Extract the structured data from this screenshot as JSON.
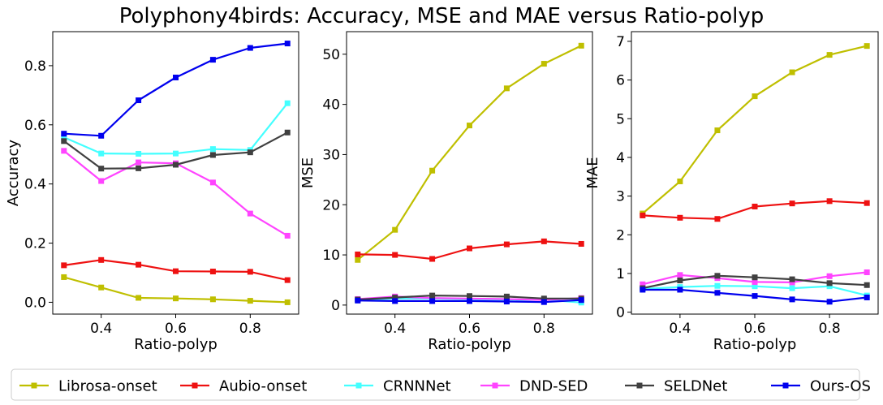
{
  "figure_title": "Polyphony4birds: Accuracy, MSE and MAE versus Ratio-polyp",
  "legend": [
    {
      "name": "Librosa-onset",
      "color": "#bfbf00"
    },
    {
      "name": "Aubio-onset",
      "color": "#ee1111"
    },
    {
      "name": "CRNNNet",
      "color": "#44ffff"
    },
    {
      "name": "DND-SED",
      "color": "#ff44ff"
    },
    {
      "name": "SELDNet",
      "color": "#404040"
    },
    {
      "name": "Ours-OS",
      "color": "#0000ee"
    }
  ],
  "chart_data": [
    {
      "type": "line",
      "xlabel": "Ratio-polyp",
      "ylabel": "Accuracy",
      "xlim": [
        0.27,
        0.93
      ],
      "ylim": [
        -0.04,
        0.915
      ],
      "xticks": [
        0.4,
        0.6,
        0.8
      ],
      "xtick_labels": [
        "0.4",
        "0.6",
        "0.8"
      ],
      "yticks": [
        0.0,
        0.2,
        0.4,
        0.6,
        0.8
      ],
      "ytick_labels": [
        "0.0",
        "0.2",
        "0.4",
        "0.6",
        "0.8"
      ],
      "grid": false,
      "x": [
        0.3,
        0.4,
        0.5,
        0.6,
        0.7,
        0.8,
        0.9
      ],
      "series": [
        {
          "name": "Librosa-onset",
          "color": "#bfbf00",
          "values": [
            0.085,
            0.05,
            0.015,
            0.013,
            0.01,
            0.005,
            0.0
          ]
        },
        {
          "name": "Aubio-onset",
          "color": "#ee1111",
          "values": [
            0.125,
            0.143,
            0.127,
            0.105,
            0.104,
            0.103,
            0.075
          ]
        },
        {
          "name": "CRNNNet",
          "color": "#44ffff",
          "values": [
            0.558,
            0.503,
            0.502,
            0.503,
            0.518,
            0.515,
            0.673
          ]
        },
        {
          "name": "DND-SED",
          "color": "#ff44ff",
          "values": [
            0.512,
            0.41,
            0.473,
            0.47,
            0.405,
            0.3,
            0.225
          ]
        },
        {
          "name": "SELDNet",
          "color": "#404040",
          "values": [
            0.545,
            0.452,
            0.453,
            0.465,
            0.498,
            0.507,
            0.574
          ]
        },
        {
          "name": "Ours-OS",
          "color": "#0000ee",
          "values": [
            0.57,
            0.563,
            0.683,
            0.76,
            0.82,
            0.86,
            0.875
          ]
        }
      ]
    },
    {
      "type": "line",
      "xlabel": "Ratio-polyp",
      "ylabel": "MSE",
      "xlim": [
        0.27,
        0.93
      ],
      "ylim": [
        -1.8,
        54.5
      ],
      "xticks": [
        0.4,
        0.6,
        0.8
      ],
      "xtick_labels": [
        "0.4",
        "0.6",
        "0.8"
      ],
      "yticks": [
        0,
        10,
        20,
        30,
        40,
        50
      ],
      "ytick_labels": [
        "0",
        "10",
        "20",
        "30",
        "40",
        "50"
      ],
      "grid": false,
      "x": [
        0.3,
        0.4,
        0.5,
        0.6,
        0.7,
        0.8,
        0.9
      ],
      "series": [
        {
          "name": "Librosa-onset",
          "color": "#bfbf00",
          "values": [
            9.0,
            15.0,
            26.8,
            35.8,
            43.2,
            48.1,
            51.7
          ]
        },
        {
          "name": "Aubio-onset",
          "color": "#ee1111",
          "values": [
            10.1,
            10.0,
            9.2,
            11.3,
            12.1,
            12.7,
            12.2
          ]
        },
        {
          "name": "CRNNNet",
          "color": "#44ffff",
          "values": [
            1.0,
            1.3,
            1.3,
            1.2,
            0.9,
            1.1,
            0.5
          ]
        },
        {
          "name": "DND-SED",
          "color": "#ff44ff",
          "values": [
            1.2,
            1.7,
            1.4,
            1.3,
            1.2,
            1.0,
            1.4
          ]
        },
        {
          "name": "SELDNet",
          "color": "#404040",
          "values": [
            1.1,
            1.5,
            1.9,
            1.8,
            1.7,
            1.3,
            1.3
          ]
        },
        {
          "name": "Ours-OS",
          "color": "#0000ee",
          "values": [
            0.9,
            0.8,
            0.8,
            0.8,
            0.7,
            0.6,
            1.0
          ]
        }
      ]
    },
    {
      "type": "line",
      "xlabel": "Ratio-polyp",
      "ylabel": "MAE",
      "xlim": [
        0.27,
        0.93
      ],
      "ylim": [
        -0.05,
        7.25
      ],
      "xticks": [
        0.4,
        0.6,
        0.8
      ],
      "xtick_labels": [
        "0.4",
        "0.6",
        "0.8"
      ],
      "yticks": [
        0,
        1,
        2,
        3,
        4,
        5,
        6,
        7
      ],
      "ytick_labels": [
        "0",
        "1",
        "2",
        "3",
        "4",
        "5",
        "6",
        "7"
      ],
      "grid": false,
      "x": [
        0.3,
        0.4,
        0.5,
        0.6,
        0.7,
        0.8,
        0.9
      ],
      "series": [
        {
          "name": "Librosa-onset",
          "color": "#bfbf00",
          "values": [
            2.55,
            3.38,
            4.7,
            5.58,
            6.2,
            6.65,
            6.88
          ]
        },
        {
          "name": "Aubio-onset",
          "color": "#ee1111",
          "values": [
            2.5,
            2.44,
            2.41,
            2.73,
            2.81,
            2.87,
            2.82
          ]
        },
        {
          "name": "CRNNNet",
          "color": "#44ffff",
          "values": [
            0.6,
            0.65,
            0.68,
            0.67,
            0.62,
            0.67,
            0.43
          ]
        },
        {
          "name": "DND-SED",
          "color": "#ff44ff",
          "values": [
            0.72,
            0.96,
            0.88,
            0.78,
            0.77,
            0.93,
            1.03
          ]
        },
        {
          "name": "SELDNet",
          "color": "#404040",
          "values": [
            0.62,
            0.82,
            0.94,
            0.9,
            0.85,
            0.75,
            0.7
          ]
        },
        {
          "name": "Ours-OS",
          "color": "#0000ee",
          "values": [
            0.58,
            0.58,
            0.5,
            0.42,
            0.33,
            0.27,
            0.38
          ]
        }
      ]
    }
  ]
}
